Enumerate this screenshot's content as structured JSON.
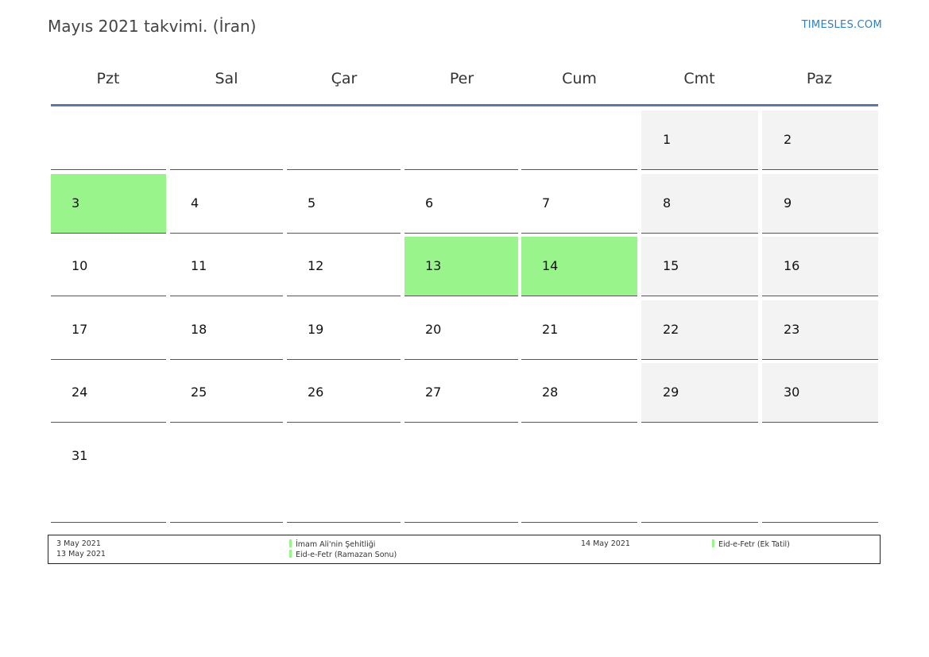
{
  "header": {
    "title": "Mayıs 2021 takvimi. (İran)",
    "brand": "TIMESLES.COM"
  },
  "weekdays": [
    "Pzt",
    "Sal",
    "Çar",
    "Per",
    "Cum",
    "Cmt",
    "Paz"
  ],
  "weeks": [
    [
      "",
      "",
      "",
      "",
      "",
      "1",
      "2"
    ],
    [
      "3",
      "4",
      "5",
      "6",
      "7",
      "8",
      "9"
    ],
    [
      "10",
      "11",
      "12",
      "13",
      "14",
      "15",
      "16"
    ],
    [
      "17",
      "18",
      "19",
      "20",
      "21",
      "22",
      "23"
    ],
    [
      "24",
      "25",
      "26",
      "27",
      "28",
      "29",
      "30"
    ],
    [
      "31",
      "",
      "",
      "",
      "",
      "",
      ""
    ]
  ],
  "holiday_days": [
    "3",
    "13",
    "14"
  ],
  "legend": {
    "dates_col1": [
      "3 May 2021",
      "13 May 2021"
    ],
    "names_col1": [
      "İmam Ali'nin Şehitliği",
      "Eid-e-Fetr (Ramazan Sonu)"
    ],
    "dates_col2": [
      "14 May 2021"
    ],
    "names_col2": [
      "Eid-e-Fetr (Ek Tatil)"
    ]
  },
  "colors": {
    "holiday": "#99f58b",
    "weekend": "#f3f3f3",
    "header_line": "#5a7a9e",
    "brand": "#2f7fc1"
  }
}
